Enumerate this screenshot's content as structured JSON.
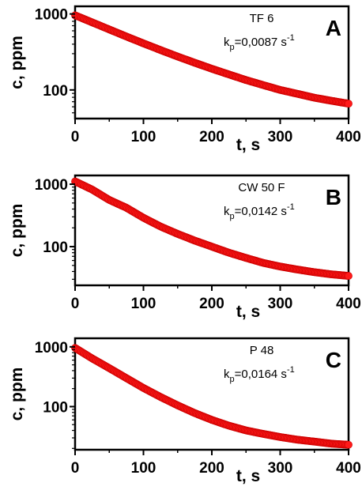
{
  "chart_data": [
    {
      "type": "scatter",
      "panel_letter": "A",
      "sample_label": "TF 6",
      "rate_prefix": "k",
      "rate_subscript": "p",
      "rate_value": "=0,0087 s",
      "rate_superscript": "-1",
      "xlabel": "t, s",
      "ylabel": "c, ppm",
      "x_scale": "linear",
      "y_scale": "log",
      "xlim": [
        0,
        400
      ],
      "ylim": [
        42,
        1260
      ],
      "xticks": [
        0,
        100,
        200,
        300,
        400
      ],
      "yticks": [
        100,
        1000
      ],
      "xtick_labels": [
        "0",
        "100",
        "200",
        "300",
        "400"
      ],
      "ytick_labels": [
        "100",
        "1000"
      ],
      "series_color": "#ff1a1a",
      "series_edge_color": "#cc0000",
      "series": [
        {
          "x": [
            0,
            25,
            50,
            75,
            100,
            125,
            150,
            175,
            200,
            225,
            250,
            275,
            300,
            325,
            350,
            375,
            400
          ],
          "values": [
            960,
            775,
            625,
            505,
            410,
            335,
            275,
            228,
            190,
            160,
            135,
            116,
            100,
            89,
            79,
            72,
            66
          ]
        }
      ]
    },
    {
      "type": "scatter",
      "panel_letter": "B",
      "sample_label": "CW 50 F",
      "rate_prefix": "k",
      "rate_subscript": "p",
      "rate_value": "=0,0142 s",
      "rate_superscript": "-1",
      "xlabel": "t, s",
      "ylabel": "c, ppm",
      "x_scale": "linear",
      "y_scale": "log",
      "xlim": [
        0,
        400
      ],
      "ylim": [
        24,
        1380
      ],
      "xticks": [
        0,
        100,
        200,
        300,
        400
      ],
      "yticks": [
        100,
        1000
      ],
      "xtick_labels": [
        "0",
        "100",
        "200",
        "300",
        "400"
      ],
      "ytick_labels": [
        "100",
        "1000"
      ],
      "series_color": "#ff1a1a",
      "series_edge_color": "#cc0000",
      "series": [
        {
          "x": [
            0,
            25,
            50,
            75,
            100,
            125,
            150,
            175,
            200,
            225,
            250,
            275,
            300,
            325,
            350,
            375,
            400
          ],
          "values": [
            1110,
            820,
            560,
            420,
            290,
            210,
            160,
            125,
            100,
            80,
            66,
            55,
            48,
            43,
            39,
            36,
            34
          ]
        }
      ]
    },
    {
      "type": "scatter",
      "panel_letter": "C",
      "sample_label": "P 48",
      "rate_prefix": "k",
      "rate_subscript": "p",
      "rate_value": "=0,0164 s",
      "rate_superscript": "-1",
      "xlabel": "t, s",
      "ylabel": "c, ppm",
      "x_scale": "linear",
      "y_scale": "log",
      "xlim": [
        0,
        400
      ],
      "ylim": [
        19,
        1390
      ],
      "xticks": [
        0,
        100,
        200,
        300,
        400
      ],
      "yticks": [
        100,
        1000
      ],
      "xtick_labels": [
        "0",
        "100",
        "200",
        "300",
        "400"
      ],
      "ytick_labels": [
        "100",
        "1000"
      ],
      "series_color": "#ff1a1a",
      "series_edge_color": "#cc0000",
      "series": [
        {
          "x": [
            0,
            25,
            50,
            75,
            100,
            125,
            150,
            175,
            200,
            225,
            250,
            275,
            300,
            325,
            350,
            375,
            400
          ],
          "values": [
            960,
            640,
            440,
            300,
            205,
            145,
            105,
            78,
            60,
            48,
            40,
            35,
            31,
            28,
            26,
            24,
            23
          ]
        }
      ]
    }
  ]
}
